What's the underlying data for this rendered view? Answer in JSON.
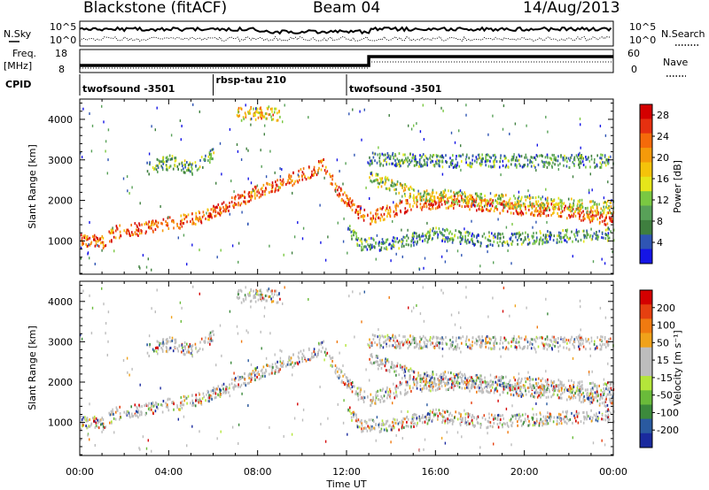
{
  "header": {
    "station": "Blackstone (fitACF)",
    "beam": "Beam 04",
    "date": "14/Aug/2013"
  },
  "aux": {
    "nsky_label": "N.Sky",
    "nsearch_label": "N.Search",
    "noise_ticks": [
      "10^5",
      "10^0"
    ],
    "freq_label": "Freq.",
    "freq_unit": "[MHz]",
    "freq_ticks": [
      "18",
      "8"
    ],
    "nave_label": "Nave",
    "nave_ticks": [
      "60",
      "0"
    ],
    "cpid_label": "CPID",
    "cpid_segments": [
      {
        "name": "twofsound -3501",
        "start": 0,
        "end": 6
      },
      {
        "name": "rbsp-tau 210",
        "start": 6,
        "end": 12
      },
      {
        "name": "twofsound -3501",
        "start": 12,
        "end": 24
      }
    ]
  },
  "chart_data": [
    {
      "type": "heatmap",
      "title": "",
      "xlabel": "Time UT",
      "ylabel": "Slant Range [km]",
      "xlim": [
        0,
        24
      ],
      "ylim": [
        180,
        4500
      ],
      "xticks": [
        "00:00",
        "04:00",
        "08:00",
        "12:00",
        "16:00",
        "20:00",
        "00:00"
      ],
      "yticks": [
        1000,
        2000,
        3000,
        4000
      ],
      "colorbar": {
        "label": "Power [dB]",
        "ticks": [
          4,
          8,
          12,
          16,
          20,
          24,
          28
        ],
        "range": [
          0,
          30
        ],
        "colors": [
          "#1515e6",
          "#2f55b4",
          "#3f7f3f",
          "#58a158",
          "#7ac842",
          "#e6e61a",
          "#f5c30a",
          "#f59a0a",
          "#f56a0a",
          "#e63010",
          "#d40000"
        ]
      },
      "bands": [
        {
          "points": [
            [
              0.0,
              1050
            ],
            [
              1.0,
              1000
            ],
            [
              1.6,
              1250
            ],
            [
              3.0,
              1350
            ],
            [
              5.0,
              1550
            ],
            [
              6.0,
              1750
            ],
            [
              7.0,
              2000
            ],
            [
              8.0,
              2250
            ],
            [
              9.5,
              2550
            ],
            [
              11.0,
              2900
            ],
            [
              11.5,
              2300
            ],
            [
              12.5,
              1750
            ],
            [
              13.0,
              1600
            ],
            [
              15.0,
              1950
            ],
            [
              17.0,
              2000
            ],
            [
              19.0,
              1850
            ],
            [
              21.0,
              1800
            ],
            [
              22.5,
              1700
            ],
            [
              24.0,
              1550
            ]
          ],
          "power": 24
        },
        {
          "points": [
            [
              13.0,
              2600
            ],
            [
              15.0,
              2200
            ],
            [
              18.0,
              2050
            ],
            [
              21.0,
              1950
            ],
            [
              24.0,
              1850
            ]
          ],
          "power": 14
        },
        {
          "points": [
            [
              12.0,
              1350
            ],
            [
              12.6,
              950
            ],
            [
              14.0,
              950
            ],
            [
              16.0,
              1200
            ],
            [
              18.0,
              1050
            ],
            [
              20.0,
              1100
            ],
            [
              22.0,
              1150
            ],
            [
              24.0,
              1200
            ]
          ],
          "power": 8
        },
        {
          "points": [
            [
              13.0,
              3050
            ],
            [
              17.0,
              3000
            ],
            [
              20.0,
              3000
            ],
            [
              24.0,
              3000
            ]
          ],
          "power": 8
        },
        {
          "points": [
            [
              3.0,
              2800
            ],
            [
              4.0,
              3000
            ],
            [
              5.0,
              2800
            ],
            [
              6.0,
              3200
            ]
          ],
          "power": 10
        },
        {
          "points": [
            [
              7.0,
              4150
            ],
            [
              8.5,
              4200
            ],
            [
              9.0,
              4100
            ]
          ],
          "power": 18
        }
      ]
    },
    {
      "type": "heatmap",
      "title": "",
      "xlabel": "Time UT",
      "ylabel": "Slant Range [km]",
      "xlim": [
        0,
        24
      ],
      "ylim": [
        180,
        4500
      ],
      "xticks": [
        "00:00",
        "04:00",
        "08:00",
        "12:00",
        "16:00",
        "20:00",
        "00:00"
      ],
      "yticks": [
        1000,
        2000,
        3000,
        4000
      ],
      "colorbar": {
        "label": "Velocity [m s⁻¹]",
        "ticks": [
          200,
          100,
          50,
          15,
          -15,
          -50,
          -100,
          -200
        ],
        "colors": [
          "#1a2a9e",
          "#2a5aa0",
          "#3c8a3c",
          "#6abb3a",
          "#b4e63a",
          "#bdbdbd",
          "#bdbdbd",
          "#f0a21a",
          "#f07a10",
          "#e64010",
          "#d40000"
        ]
      }
    }
  ]
}
